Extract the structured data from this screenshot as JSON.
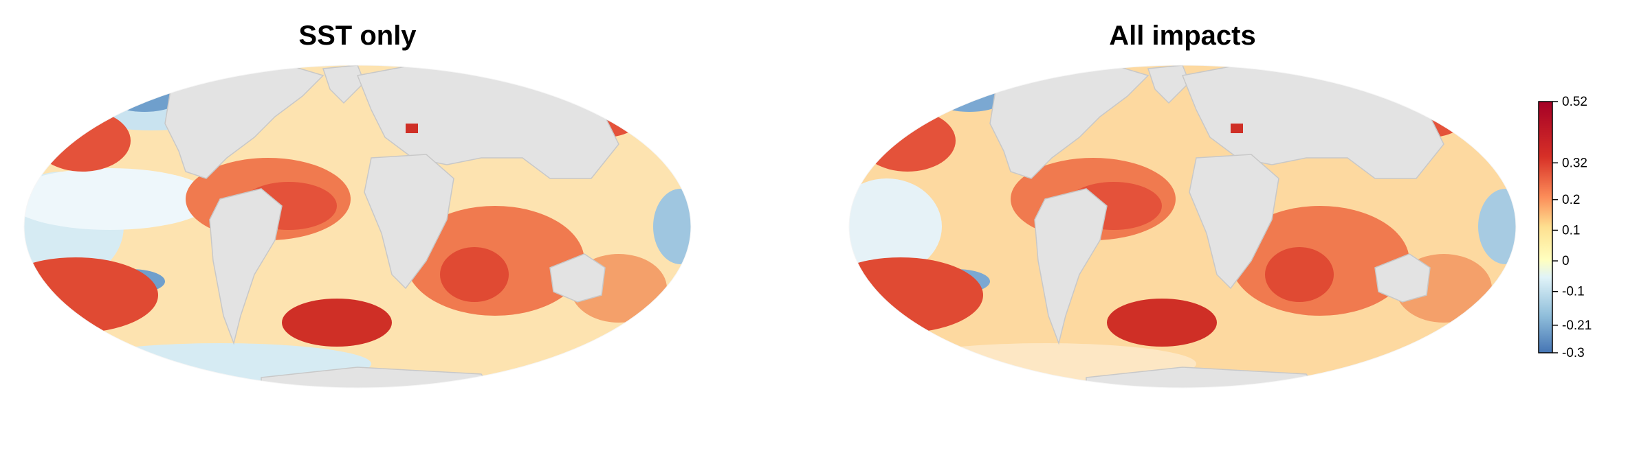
{
  "panels": [
    {
      "title": "SST only"
    },
    {
      "title": "All impacts"
    }
  ],
  "legend": {
    "ticks": [
      "0.52",
      "0.32",
      "0.2",
      "0.1",
      "0",
      "-0.1",
      "-0.21",
      "-0.3"
    ],
    "tick_values": [
      0.52,
      0.32,
      0.2,
      0.1,
      0,
      -0.1,
      -0.21,
      -0.3
    ],
    "range": [
      -0.3,
      0.52
    ],
    "colors": [
      "#4575b4",
      "#91bfdb",
      "#e0f3f8",
      "#ffffbf",
      "#fee090",
      "#fc8d59",
      "#d73027",
      "#a50026"
    ]
  },
  "colors": {
    "land": "#e3e3e3",
    "ocean_warm_strong": "#d73027",
    "ocean_warm": "#f46d43",
    "ocean_mild": "#fdae61",
    "ocean_neutral": "#fee8b8",
    "ocean_cool": "#c6e2ef",
    "ocean_cold": "#6a9bcb"
  }
}
